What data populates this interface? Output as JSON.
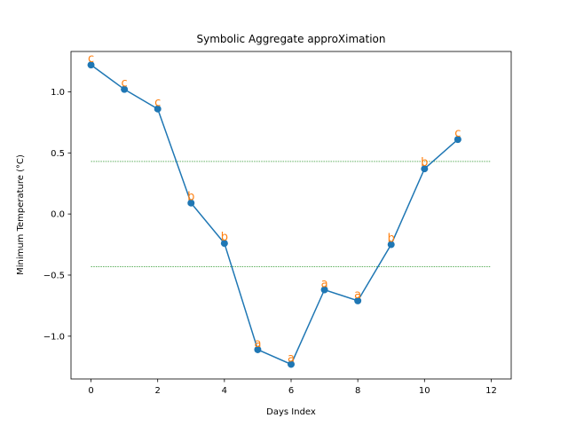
{
  "chart_data": {
    "type": "line",
    "title": "Symbolic Aggregate approXimation",
    "xlabel": "Days Index",
    "ylabel": "Minimum Temperature (°C)",
    "xlim": [
      -0.6,
      12.6
    ],
    "ylim": [
      -1.35,
      1.33
    ],
    "xticks": [
      0,
      2,
      4,
      6,
      8,
      10,
      12
    ],
    "xtick_labels": [
      "0",
      "2",
      "4",
      "6",
      "8",
      "10",
      "12"
    ],
    "yticks": [
      1.0,
      0.5,
      0.0,
      -0.5,
      -1.0
    ],
    "ytick_labels": [
      "1.0",
      "0.5",
      "0.0",
      "−0.5",
      "−1.0"
    ],
    "grid": false,
    "series": [
      {
        "x": [
          0,
          1,
          2,
          3,
          4,
          5,
          6,
          7,
          8,
          9,
          10,
          11
        ],
        "values": [
          1.22,
          1.02,
          0.86,
          0.09,
          -0.24,
          -1.11,
          -1.23,
          -0.62,
          -0.71,
          -0.25,
          0.37,
          0.61
        ],
        "color": "#1f77b4",
        "marker": "circle"
      }
    ],
    "symbols": [
      "c",
      "c",
      "c",
      "b",
      "b",
      "a",
      "a",
      "a",
      "a",
      "b",
      "b",
      "c"
    ],
    "symbol_color": "#ff7f0e",
    "breakpoints": [
      0.43,
      -0.43
    ],
    "breakpoint_x_range": [
      0,
      12
    ],
    "breakpoint_color": "#008000"
  }
}
